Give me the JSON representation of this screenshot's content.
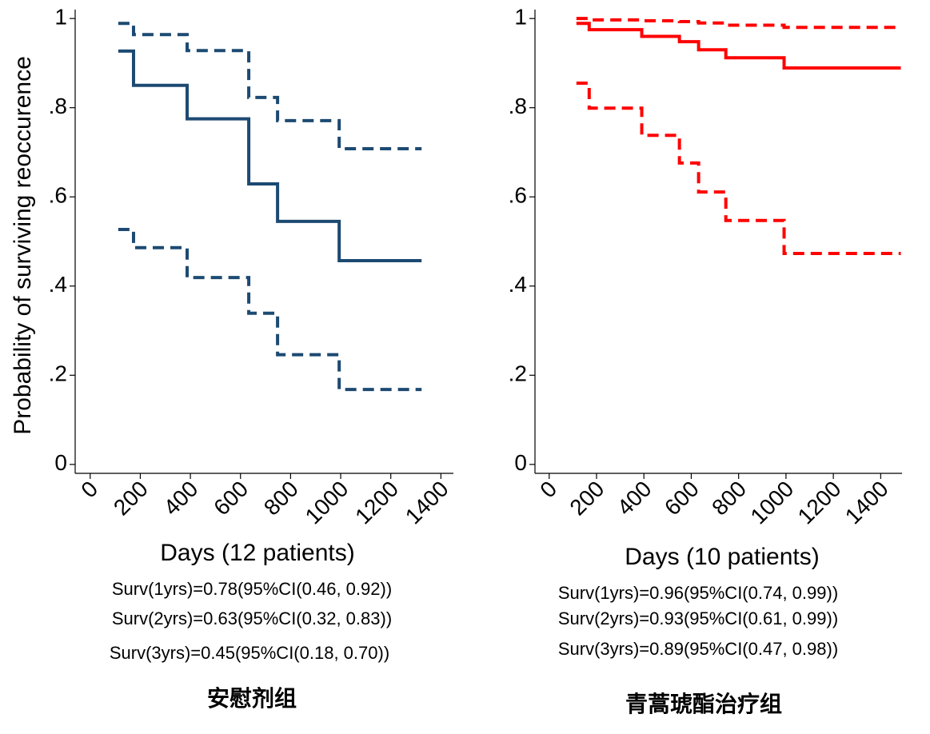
{
  "chart_data": [
    {
      "type": "step",
      "y_label": "Probability of surviving reoccurence",
      "x_label": "Days (12 patients)",
      "notes": [
        "Surv(1yrs)=0.78(95%CI(0.46, 0.92))",
        "Surv(2yrs)=0.63(95%CI(0.32, 0.83))",
        "Surv(3yrs)=0.45(95%CI(0.18, 0.70))"
      ],
      "caption": "安慰剂组",
      "x": [
        112,
        173,
        387,
        633,
        748,
        994,
        1323
      ],
      "series": [
        {
          "style": "solid",
          "color": "#1c4a72",
          "values": [
            0.927,
            0.85,
            0.775,
            0.629,
            0.545,
            0.457,
            0.457
          ]
        },
        {
          "style": "dashed",
          "color": "#1c4a72",
          "values": [
            0.989,
            0.964,
            0.928,
            0.823,
            0.771,
            0.708,
            0.708
          ]
        },
        {
          "style": "dashed",
          "color": "#1c4a72",
          "values": [
            0.527,
            0.486,
            0.419,
            0.339,
            0.246,
            0.168,
            0.168
          ]
        }
      ],
      "xlim": [
        -60,
        1450
      ],
      "ylim": [
        -0.02,
        1.02
      ],
      "xticks": [
        0,
        200,
        400,
        600,
        800,
        1000,
        1200,
        1400
      ],
      "yticks": [
        0,
        {
          "value": 0.2,
          "label": ".2"
        },
        {
          "value": 0.4,
          "label": ".4"
        },
        {
          "value": 0.6,
          "label": ".6"
        },
        {
          "value": 0.8,
          "label": ".8"
        },
        1
      ]
    },
    {
      "type": "step",
      "x_label": "Days (10 patients)",
      "notes": [
        "Surv(1yrs)=0.96(95%CI(0.74, 0.99))",
        "Surv(2yrs)=0.93(95%CI(0.61, 0.99))",
        "Surv(3yrs)=0.89(95%CI(0.47, 0.98))"
      ],
      "caption": "青蒿琥酯治疗组",
      "x": [
        115,
        169,
        391,
        550,
        631,
        746,
        992,
        1485
      ],
      "series": [
        {
          "style": "solid",
          "color": "#ff0000",
          "values": [
            0.989,
            0.975,
            0.96,
            0.948,
            0.93,
            0.912,
            0.889,
            0.889
          ]
        },
        {
          "style": "dashed",
          "color": "#ff0000",
          "values": [
            1,
            0.997,
            0.995,
            0.993,
            0.99,
            0.985,
            0.98,
            0.98
          ]
        },
        {
          "style": "dashed",
          "color": "#ff0000",
          "values": [
            0.855,
            0.799,
            0.738,
            0.676,
            0.611,
            0.547,
            0.473,
            0.473
          ]
        }
      ],
      "xlim": [
        -60,
        1490
      ],
      "ylim": [
        -0.02,
        1.02
      ],
      "xticks": [
        0,
        200,
        400,
        600,
        800,
        1000,
        1200,
        1400
      ],
      "yticks": [
        0,
        {
          "value": 0.2,
          "label": ".2"
        },
        {
          "value": 0.4,
          "label": ".4"
        },
        {
          "value": 0.6,
          "label": ".6"
        },
        {
          "value": 0.8,
          "label": ".8"
        },
        1
      ]
    }
  ]
}
